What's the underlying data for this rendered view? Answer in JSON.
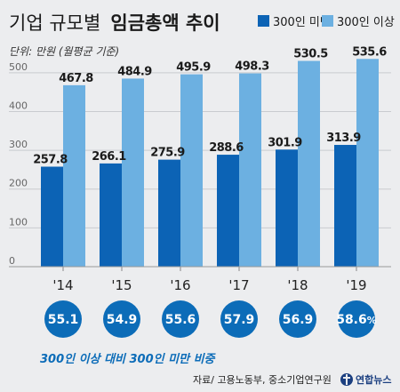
{
  "chart_data": {
    "type": "bar",
    "title_normal": "기업 규모별",
    "title_bold": "임금총액 추이",
    "unit_note": "단위: 만원 (월평균 기준)",
    "categories": [
      "'14",
      "'15",
      "'16",
      "'17",
      "'18",
      "'19"
    ],
    "series": [
      {
        "name": "300인 미만",
        "color": "#0c63b5",
        "values": [
          257.8,
          266.1,
          275.9,
          288.6,
          301.9,
          313.9
        ]
      },
      {
        "name": "300인 이상",
        "color": "#6cb0e1",
        "values": [
          467.8,
          484.9,
          495.9,
          498.3,
          530.5,
          535.6
        ]
      }
    ],
    "yticks": [
      "0",
      "100",
      "200",
      "300",
      "400",
      "500"
    ],
    "ylim": [
      0,
      550
    ],
    "grid": true,
    "legend": "top-right",
    "ratio": {
      "values": [
        "55.1",
        "54.9",
        "55.6",
        "57.9",
        "56.9",
        "58.6"
      ],
      "last_suffix": "%",
      "color": "#0c6cb8",
      "caption": "300인 이상 대비 300인 미만 비중"
    },
    "source": "자료/ 고용노동부, 중소기업연구원",
    "brand": "연합뉴스"
  }
}
